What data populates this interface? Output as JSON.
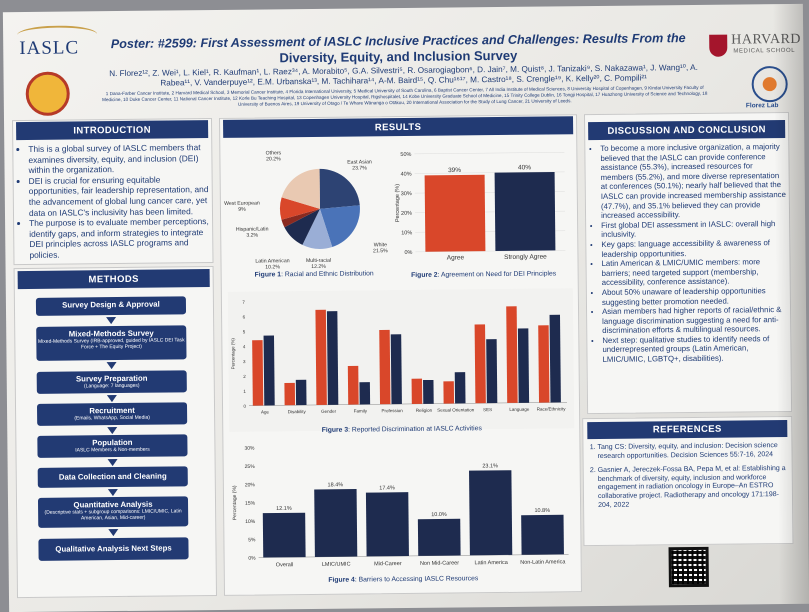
{
  "header": {
    "logo_text": "IASLC",
    "title_line1_prefix": "Poster: #2599:",
    "title_line1_rest": " First Assessment of IASLC Inclusive Practices and Challenges: Results From the",
    "title_line2": "Diversity, Equity, and Inclusion Survey",
    "authors": "N. Florez¹², Z. Wei¹, L. Kiel¹, R. Kaufman¹, L. Raez³⁴, A. Morabito⁵, G.A. Silvestri⁵, R. Osarogiagbon⁶, D. Jain⁷, M. Quist⁸, J. Tanizaki⁹, S. Nakazawa¹, J. Wang¹⁰, A. Rabea¹¹, V. Vanderpuye¹², E.M. Urbanska¹³, M. Tachihara¹⁴, A-M. Baird¹⁵, Q. Chu¹⁶¹⁷, M. Castro¹⁸, S. Crengle¹⁹, K. Kelly²⁰, C. Pompili²¹",
    "affiliations": "1 Dana-Farber Cancer Institute, 2 Harvard Medical School, 3 Memorial Cancer Institute, 4 Florida International University, 5 Medical University of South Carolina, 6 Baptist Cancer Center, 7 All India Institute of Medical Sciences, 8 University Hospital of Copenhagen, 9 Kindai University Faculty of Medicine, 10 Duke Cancer Center, 11 National Cancer Institute, 12 Korle Bu Teaching Hospital, 13 Copenhagen University Hospital, Rigshospitalet, 14 Kobe University Graduate School of Medicine, 15 Trinity College Dublin, 16 Tongji Hospital, 17 Huazhong University of Science and Technology, 18 University of Buenos Aires, 19 University of Otago / Te Whare Wānanga o Otākou, 20 International Association for the Study of Lung Cancer, 21 University of Leeds.",
    "harvard_line1": "HARVARD",
    "harvard_line2": "MEDICAL SCHOOL",
    "florez_lab": "Florez Lab"
  },
  "introduction": {
    "heading": "INTRODUCTION",
    "bullets": [
      "This is a global survey of IASLC members that examines diversity, equity, and inclusion (DEI) within the organization.",
      "DEI is crucial for ensuring equitable opportunities, fair leadership representation, and the advancement of global lung cancer care, yet data on IASLC's inclusivity has been limited.",
      "The purpose is to evaluate member perceptions, identify gaps, and inform strategies to integrate DEI principles across IASLC programs and policies."
    ]
  },
  "methods": {
    "heading": "METHODS",
    "steps": [
      {
        "title": "Survey Design & Approval",
        "sub": ""
      },
      {
        "title": "Mixed-Methods Survey",
        "sub": "Mixed-Methods Survey (IRB-approved, guided by IASLC DEI Task Force + The Equity Project)"
      },
      {
        "title": "Survey Preparation",
        "sub": "(Language: 7 languages)"
      },
      {
        "title": "Recruitment",
        "sub": "(Emails, WhatsApp, Social Media)"
      },
      {
        "title": "Population",
        "sub": "IASLC Members & Non-members"
      },
      {
        "title": "Data Collection and Cleaning",
        "sub": ""
      },
      {
        "title": "Quantitative Analysis",
        "sub": "(Descriptive stats + subgroup comparisons: LMIC/UMIC, Latin American, Asian, Mid-career)"
      },
      {
        "title": "Qualitative Analysis Next Steps",
        "sub": ""
      }
    ]
  },
  "results": {
    "heading": "RESULTS",
    "fig1_caption_bold": "Figure 1",
    "fig1_caption": ": Racial and Ethnic Distribution",
    "fig2_caption_bold": "Figure 2",
    "fig2_caption": ": Agreement on Need for DEI Principles",
    "fig3_caption_bold": "Figure 3",
    "fig3_caption": ": Reported Discrimination at IASLC Activities",
    "fig4_caption_bold": "Figure 4",
    "fig4_caption": ": Barriers to Accessing IASLC Resources"
  },
  "discussion": {
    "heading": "DISCUSSION AND CONCLUSION",
    "bullets": [
      "To become a more inclusive organization, a majority believed that the IASLC can provide conference assistance (55.3%), increased resources for members (55.2%), and more diverse representation at conferences (50.1%); nearly half believed that the IASLC can provide increased membership assistance (47.7%), and 35.1% believed they can provide increased accessibility.",
      "First global DEI assessment in IASLC: overall high inclusivity.",
      "Key gaps: language accessibility & awareness of leadership opportunities.",
      "Latin American & LMIC/UMIC members: more barriers; need targeted support (membership, accessibility, conference assistance).",
      "About 50% unaware of leadership opportunities suggesting better promotion needed.",
      "Asian members had higher reports of racial/ethnic & language discrimination suggesting a need for anti-discrimination efforts & multilingual resources.",
      "Next step: qualitative studies to identify needs of underrepresented groups (Latin American, LMIC/UMIC, LGBTQ+, disabilities)."
    ]
  },
  "references": {
    "heading": "REFERENCES",
    "items": [
      "Tang CS: Diversity, equity, and inclusion: Decision science research opportunities. Decision Sciences 55:7-16, 2024",
      "Gasnier A, Jereczek-Fossa BA, Pepa M, et al: Establishing a benchmark of diversity, equity, inclusion and workforce engagement in radiation oncology in Europe–An ESTRO collaborative project. Radiotherapy and oncology 171:198-204, 2022"
    ]
  },
  "colors": {
    "navy": "#223a73",
    "orange": "#d9472a",
    "dark_navy": "#1e2b4f"
  },
  "chart_data": [
    {
      "type": "pie",
      "title": "Racial and Ethnic Distribution",
      "slices": [
        {
          "label": "East Asian",
          "value": 23.7
        },
        {
          "label": "White",
          "value": 21.5
        },
        {
          "label": "Multi-racial",
          "value": 12.2
        },
        {
          "label": "Latin American",
          "value": 10.2
        },
        {
          "label": "Hispanic/Latin",
          "value": 3.2
        },
        {
          "label": "West European",
          "value": 9
        },
        {
          "label": "Others",
          "value": 20.2
        }
      ],
      "slice_labels": [
        "East Asian\n23.7%",
        "White\n21.5%",
        "Multi-racial\n12.2%",
        "Latin American\n10.2%",
        "Hispanic/Latin\n3.2%",
        "West European\n9%",
        "Others\n20.2%"
      ],
      "slice_colors": [
        "#2d4373",
        "#4a73b8",
        "#9aaed6",
        "#1e2b4f",
        "#8a2a20",
        "#d9472a",
        "#e9c9b2"
      ]
    },
    {
      "type": "bar",
      "title": "Agreement on Need for DEI Principles",
      "categories": [
        "Agree",
        "Strongly Agree"
      ],
      "values": [
        39,
        40
      ],
      "value_labels": [
        "39%",
        "40%"
      ],
      "ylabel": "Percentage (%)",
      "ylim": [
        0,
        50
      ],
      "yticks": [
        0,
        10,
        20,
        30,
        40,
        50
      ],
      "ytick_labels": [
        "0%",
        "10%",
        "20%",
        "30%",
        "40%",
        "50%"
      ],
      "colors": [
        "#d9472a",
        "#1e2b4f"
      ]
    },
    {
      "type": "bar",
      "title": "Reported Discrimination at IASLC Activities",
      "categories": [
        "Age",
        "Disability",
        "Gender",
        "Family",
        "Profession",
        "Religion",
        "Sexual Orientation",
        "SES",
        "Language",
        "Race/Ethnicity"
      ],
      "series": [
        {
          "values": [
            4.4,
            1.5,
            6.4,
            2.6,
            5.0,
            1.7,
            1.5,
            5.3,
            6.5,
            5.2
          ]
        },
        {
          "values": [
            4.7,
            1.7,
            6.3,
            1.5,
            4.7,
            1.6,
            2.1,
            4.3,
            5.0,
            5.9
          ]
        }
      ],
      "ylabel": "Percentage (%)",
      "ylim": [
        0,
        7
      ],
      "yticks": [
        0,
        1,
        2,
        3,
        4,
        5,
        6,
        7
      ],
      "colors": [
        "#d9472a",
        "#1e2b4f"
      ]
    },
    {
      "type": "bar",
      "title": "Barriers to Accessing IASLC Resources",
      "categories": [
        "Overall",
        "LMIC/UMIC",
        "Mid-Career",
        "Non Mid-Career",
        "Latin America",
        "Non-Latin America"
      ],
      "values": [
        12.1,
        18.4,
        17.4,
        10.0,
        23.1,
        10.8
      ],
      "value_labels": [
        "12.1%",
        "18.4%",
        "17.4%",
        "10.0%",
        "23.1%",
        "10.8%"
      ],
      "ylabel": "Percentage (%)",
      "ylim": [
        0,
        30
      ],
      "yticks": [
        0,
        5,
        10,
        15,
        20,
        25,
        30
      ],
      "ytick_labels": [
        "0%",
        "5%",
        "10%",
        "15%",
        "20%",
        "25%",
        "30%"
      ],
      "colors": [
        "#1e2b4f"
      ]
    }
  ]
}
